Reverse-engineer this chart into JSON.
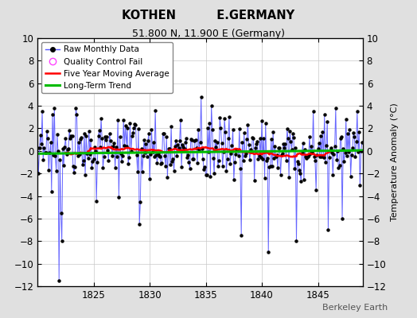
{
  "title": "KOTHEN          E.GERMANY",
  "subtitle": "51.800 N, 11.900 E (Germany)",
  "ylabel": "Temperature Anomaly (°C)",
  "year_start": 1820,
  "year_end": 1849,
  "ylim": [
    -12,
    10
  ],
  "yticks": [
    -12,
    -10,
    -8,
    -6,
    -4,
    -2,
    0,
    2,
    4,
    6,
    8,
    10
  ],
  "xticks": [
    1825,
    1830,
    1835,
    1840,
    1845
  ],
  "bg_color": "#e0e0e0",
  "plot_bg_color": "#ffffff",
  "grid_color": "#c8c8c8",
  "line_color": "#5555ff",
  "trend_color": "#00bb00",
  "moving_avg_color": "#ff0000",
  "dot_color": "#000000",
  "seed": 17
}
